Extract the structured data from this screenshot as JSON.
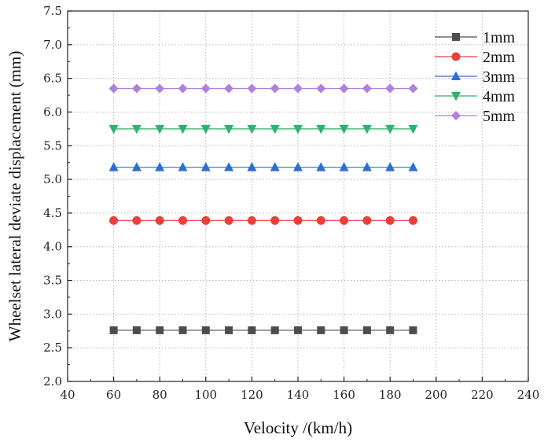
{
  "chart_data": {
    "type": "line",
    "title": "",
    "xlabel": "Velocity /(km/h)",
    "ylabel": "Wheelset lateral deviate displacement (mm)",
    "xlim": [
      40,
      240
    ],
    "ylim": [
      2.0,
      7.5
    ],
    "grid": true,
    "legend_position": "top-right",
    "x_ticks": [
      "40",
      "60",
      "80",
      "100",
      "120",
      "140",
      "160",
      "180",
      "200",
      "220",
      "240"
    ],
    "y_ticks": [
      "2.0",
      "2.5",
      "3.0",
      "3.5",
      "4.0",
      "4.5",
      "5.0",
      "5.5",
      "6.0",
      "6.5",
      "7.0",
      "7.5"
    ],
    "x": [
      60,
      70,
      80,
      90,
      100,
      110,
      120,
      130,
      140,
      150,
      160,
      170,
      180,
      190
    ],
    "series": [
      {
        "name": "1mm",
        "marker": "square",
        "color": "#4d4d4d",
        "values": [
          2.76,
          2.76,
          2.76,
          2.76,
          2.76,
          2.76,
          2.76,
          2.76,
          2.76,
          2.76,
          2.76,
          2.76,
          2.76,
          2.76
        ]
      },
      {
        "name": "2mm",
        "marker": "circle",
        "color": "#e8413c",
        "values": [
          4.39,
          4.39,
          4.39,
          4.39,
          4.39,
          4.39,
          4.39,
          4.39,
          4.39,
          4.39,
          4.39,
          4.39,
          4.39,
          4.39
        ]
      },
      {
        "name": "3mm",
        "marker": "triangle-up",
        "color": "#2a6fd4",
        "values": [
          5.18,
          5.18,
          5.18,
          5.18,
          5.18,
          5.18,
          5.18,
          5.18,
          5.18,
          5.18,
          5.18,
          5.18,
          5.18,
          5.18
        ]
      },
      {
        "name": "4mm",
        "marker": "triangle-down",
        "color": "#2fb26b",
        "values": [
          5.75,
          5.75,
          5.75,
          5.75,
          5.75,
          5.75,
          5.75,
          5.75,
          5.75,
          5.75,
          5.75,
          5.75,
          5.75,
          5.75
        ]
      },
      {
        "name": "5mm",
        "marker": "diamond",
        "color": "#b07fe0",
        "values": [
          6.35,
          6.35,
          6.35,
          6.35,
          6.35,
          6.35,
          6.35,
          6.35,
          6.35,
          6.35,
          6.35,
          6.35,
          6.35,
          6.35
        ]
      }
    ]
  }
}
